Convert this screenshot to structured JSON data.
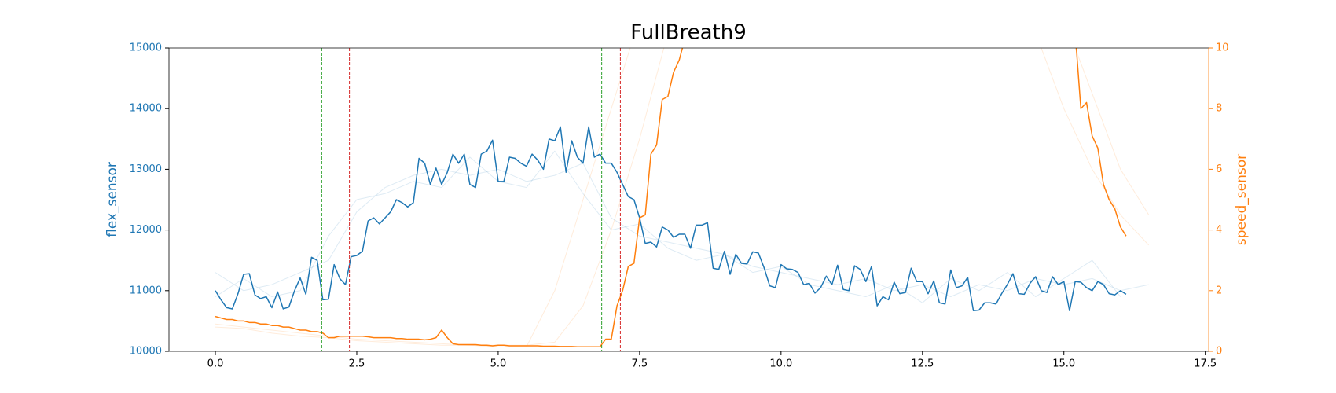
{
  "chart_data": {
    "type": "line",
    "title": "FullBreath9",
    "ylabel": "flex_sensor",
    "y2label": "speed_sensor",
    "xlim": [
      -0.82,
      17.56
    ],
    "ylim": [
      10000,
      15000
    ],
    "y2lim": [
      0,
      10
    ],
    "xticks": [
      {
        "value": 0,
        "label": "0.0"
      },
      {
        "value": 2.5,
        "label": "2.5"
      },
      {
        "value": 5,
        "label": "5.0"
      },
      {
        "value": 7.5,
        "label": "7.5"
      },
      {
        "value": 10,
        "label": "10.0"
      },
      {
        "value": 12.5,
        "label": "12.5"
      },
      {
        "value": 15,
        "label": "15.0"
      },
      {
        "value": 17.5,
        "label": "17.5"
      }
    ],
    "yticks": [
      10000,
      11000,
      12000,
      13000,
      14000,
      15000
    ],
    "y2ticks": [
      0,
      2,
      4,
      6,
      8,
      10
    ],
    "ycolor": "#1f77b4",
    "y2color": "#ff7f0e",
    "vlines": [
      {
        "x": 1.88,
        "color": "#2ca02c"
      },
      {
        "x": 2.37,
        "color": "#d62728"
      },
      {
        "x": 6.83,
        "color": "#2ca02c"
      },
      {
        "x": 7.16,
        "color": "#d62728"
      }
    ],
    "x": [
      0,
      0.1,
      0.2,
      0.3,
      0.4,
      0.5,
      0.6,
      0.7,
      0.8,
      0.9,
      1,
      1.1,
      1.2,
      1.3,
      1.4,
      1.5,
      1.6,
      1.7,
      1.8,
      1.9,
      2,
      2.1,
      2.2,
      2.3,
      2.4,
      2.5,
      2.6,
      2.7,
      2.8,
      2.9,
      3,
      3.1,
      3.2,
      3.3,
      3.4,
      3.5,
      3.6,
      3.7,
      3.8,
      3.9,
      4,
      4.1,
      4.2,
      4.3,
      4.4,
      4.5,
      4.6,
      4.7,
      4.8,
      4.9,
      5,
      5.1,
      5.2,
      5.3,
      5.4,
      5.5,
      5.6,
      5.7,
      5.8,
      5.9,
      6,
      6.1,
      6.2,
      6.3,
      6.4,
      6.5,
      6.6,
      6.7,
      6.8,
      6.9,
      7,
      7.1,
      7.2,
      7.3,
      7.4,
      7.5,
      7.6,
      7.7,
      7.8,
      7.9,
      8,
      8.1,
      8.2,
      8.3,
      8.4,
      8.5,
      8.6,
      8.7,
      8.8,
      8.9,
      9,
      9.1,
      9.2,
      9.3,
      9.4,
      9.5,
      9.6,
      9.7,
      9.8,
      9.9,
      10,
      10.1,
      10.2,
      10.3,
      10.4,
      10.5,
      10.6,
      10.7,
      10.8,
      10.9,
      11,
      11.1,
      11.2,
      11.3,
      11.4,
      11.5,
      11.6,
      11.7,
      11.8,
      11.9,
      12,
      12.1,
      12.2,
      12.3,
      12.4,
      12.5,
      12.6,
      12.7,
      12.8,
      12.9,
      13,
      13.1,
      13.2,
      13.3,
      13.4,
      13.5,
      13.6,
      13.7,
      13.8,
      13.9,
      14,
      14.1,
      14.2,
      14.3,
      14.4,
      14.5,
      14.6,
      14.7,
      14.8,
      14.9,
      15,
      15.1,
      15.2,
      15.3,
      15.4,
      15.5,
      15.6,
      15.7,
      15.8,
      15.9,
      16,
      16.1
    ],
    "series": [
      {
        "color": "#1f77b4",
        "alpha": 0.15,
        "width": 1,
        "x": [
          0,
          0.5,
          1,
          1.5,
          2,
          2.5,
          3,
          3.5,
          4,
          4.5,
          5,
          5.5,
          6,
          6.5,
          7,
          7.5,
          8,
          8.5,
          9,
          9.5,
          10,
          10.5,
          11,
          11.5,
          12,
          12.5,
          13,
          13.5,
          14,
          14.5,
          15,
          15.5,
          16,
          16.5
        ],
        "values": [
          11300,
          11000,
          11100,
          11300,
          11500,
          12300,
          12700,
          12900,
          13000,
          12900,
          13000,
          12800,
          12900,
          13100,
          12200,
          11900,
          11800,
          11700,
          11600,
          11400,
          11300,
          11200,
          11100,
          11200,
          11000,
          11100,
          10900,
          11100,
          11000,
          11200,
          11100,
          11200,
          11000,
          11100
        ]
      },
      {
        "color": "#1f77b4",
        "alpha": 0.15,
        "width": 1,
        "x": [
          0,
          0.5,
          1,
          1.5,
          2,
          2.5,
          3,
          3.5,
          4,
          4.5,
          5,
          5.5,
          6,
          6.5,
          7,
          7.5,
          8,
          8.5,
          9,
          9.5,
          10,
          10.5,
          11,
          11.5,
          12,
          12.5,
          13,
          13.5,
          14,
          14.5,
          15,
          15.5,
          16,
          16.5
        ],
        "values": [
          10900,
          11200,
          10900,
          11000,
          11900,
          12500,
          12600,
          12800,
          12700,
          13200,
          12800,
          12700,
          13300,
          12600,
          12000,
          12100,
          11700,
          11500,
          11600,
          11300,
          11400,
          11100,
          11000,
          10900,
          11100,
          10800,
          11200,
          11000,
          11300,
          10900,
          11200,
          11500,
          10900,
          null
        ]
      },
      {
        "color": "#ff7f0e",
        "alpha": 0.15,
        "width": 1,
        "axis": "y2",
        "x": [
          0,
          0.5,
          1,
          1.5,
          2,
          2.5,
          3,
          3.5,
          4,
          4.5,
          5,
          5.5,
          6,
          6.5,
          7,
          7.5,
          8,
          8.5,
          9,
          9.5,
          10,
          10.5,
          11,
          11.5,
          12,
          12.5,
          13,
          13.5,
          14,
          14.5,
          15,
          15.5,
          16,
          16.5
        ],
        "values": [
          0.9,
          0.8,
          0.7,
          0.6,
          0.5,
          0.4,
          0.35,
          0.3,
          0.25,
          0.2,
          0.2,
          0.2,
          0.3,
          1.5,
          4.0,
          7.0,
          10.5,
          null,
          null,
          null,
          null,
          null,
          null,
          null,
          null,
          null,
          null,
          null,
          null,
          10.5,
          8.0,
          6.0,
          4.5,
          3.5
        ]
      },
      {
        "color": "#ff7f0e",
        "alpha": 0.15,
        "width": 1,
        "axis": "y2",
        "x": [
          0,
          0.5,
          1,
          1.5,
          2,
          2.5,
          3,
          3.5,
          4,
          4.5,
          5,
          5.5,
          6,
          6.5,
          7,
          7.5,
          8,
          8.5,
          9,
          9.5,
          10,
          10.5,
          11,
          11.5,
          12,
          12.5,
          13,
          13.5,
          14,
          14.5,
          15,
          15.5,
          16,
          16.5
        ],
        "values": [
          0.8,
          0.75,
          0.6,
          0.5,
          0.45,
          0.35,
          0.3,
          0.25,
          0.2,
          0.2,
          0.15,
          0.15,
          2.0,
          5.0,
          8.0,
          11.0,
          null,
          null,
          null,
          null,
          null,
          null,
          null,
          null,
          null,
          null,
          null,
          null,
          null,
          null,
          11.0,
          8.5,
          6.0,
          4.5
        ]
      },
      {
        "color": "#1f77b4",
        "alpha": 1,
        "width": 1.5,
        "values": [
          11000,
          10850,
          10720,
          10700,
          10950,
          11270,
          11280,
          10930,
          10870,
          10900,
          10720,
          10980,
          10700,
          10730,
          11000,
          11210,
          10940,
          11550,
          11500,
          10850,
          10860,
          11430,
          11200,
          11100,
          11560,
          11580,
          11650,
          12150,
          12200,
          12100,
          12200,
          12300,
          12500,
          12450,
          12380,
          12450,
          13180,
          13100,
          12750,
          13020,
          12750,
          12950,
          13250,
          13100,
          13250,
          12750,
          12700,
          13250,
          13300,
          13480,
          12800,
          12800,
          13200,
          13180,
          13100,
          13050,
          13250,
          13150,
          13000,
          13500,
          13470,
          13700,
          12950,
          13470,
          13200,
          13100,
          13700,
          13200,
          13250,
          13100,
          13100,
          12950,
          12750,
          12550,
          12500,
          12200,
          11780,
          11800,
          11720,
          12050,
          12000,
          11880,
          11930,
          11930,
          11700,
          12080,
          12080,
          12120,
          11370,
          11350,
          11650,
          11270,
          11600,
          11450,
          11440,
          11640,
          11620,
          11380,
          11080,
          11050,
          11430,
          11360,
          11350,
          11300,
          11100,
          11120,
          10960,
          11050,
          11240,
          11100,
          11420,
          11020,
          11000,
          11410,
          11350,
          11150,
          11400,
          10750,
          10900,
          10850,
          11140,
          10950,
          10970,
          11370,
          11150,
          11150,
          10950,
          11160,
          10800,
          10780,
          11340,
          11050,
          11080,
          11220,
          10670,
          10680,
          10800,
          10800,
          10780,
          10950,
          11100,
          11280,
          10950,
          10940,
          11120,
          11230,
          11000,
          10970,
          11230,
          11100,
          11150,
          10670,
          11150,
          11140,
          11050,
          11000,
          11150,
          11100,
          10950,
          10930,
          11000,
          10940
        ]
      },
      {
        "color": "#ff7f0e",
        "alpha": 1,
        "width": 1.5,
        "axis": "y2",
        "values": [
          1.15,
          1.1,
          1.05,
          1.05,
          1.0,
          1.0,
          0.95,
          0.95,
          0.9,
          0.9,
          0.85,
          0.85,
          0.8,
          0.8,
          0.75,
          0.7,
          0.7,
          0.65,
          0.65,
          0.6,
          0.45,
          0.45,
          0.5,
          0.5,
          0.5,
          0.5,
          0.5,
          0.48,
          0.45,
          0.45,
          0.45,
          0.45,
          0.42,
          0.42,
          0.4,
          0.4,
          0.4,
          0.38,
          0.4,
          0.45,
          0.7,
          0.45,
          0.25,
          0.22,
          0.22,
          0.22,
          0.22,
          0.2,
          0.2,
          0.18,
          0.2,
          0.2,
          0.18,
          0.18,
          0.18,
          0.18,
          0.18,
          0.18,
          0.17,
          0.17,
          0.17,
          0.16,
          0.16,
          0.16,
          0.15,
          0.15,
          0.15,
          0.15,
          0.15,
          0.4,
          0.4,
          1.5,
          2.0,
          2.8,
          2.9,
          4.4,
          4.5,
          6.5,
          6.8,
          8.3,
          8.4,
          9.2,
          9.6,
          10.3,
          11.5,
          null,
          null,
          null,
          null,
          null,
          null,
          null,
          null,
          null,
          null,
          null,
          null,
          null,
          null,
          null,
          null,
          null,
          null,
          null,
          null,
          null,
          null,
          null,
          null,
          null,
          null,
          null,
          null,
          null,
          null,
          null,
          null,
          null,
          null,
          null,
          null,
          null,
          null,
          null,
          null,
          null,
          null,
          null,
          null,
          null,
          null,
          null,
          null,
          null,
          null,
          null,
          null,
          null,
          null,
          null,
          null,
          null,
          null,
          null,
          null,
          null,
          null,
          null,
          null,
          null,
          null,
          null,
          10.5,
          8.0,
          8.2,
          7.1,
          6.7,
          5.5,
          5.0,
          4.7,
          4.1,
          3.8
        ]
      }
    ]
  }
}
